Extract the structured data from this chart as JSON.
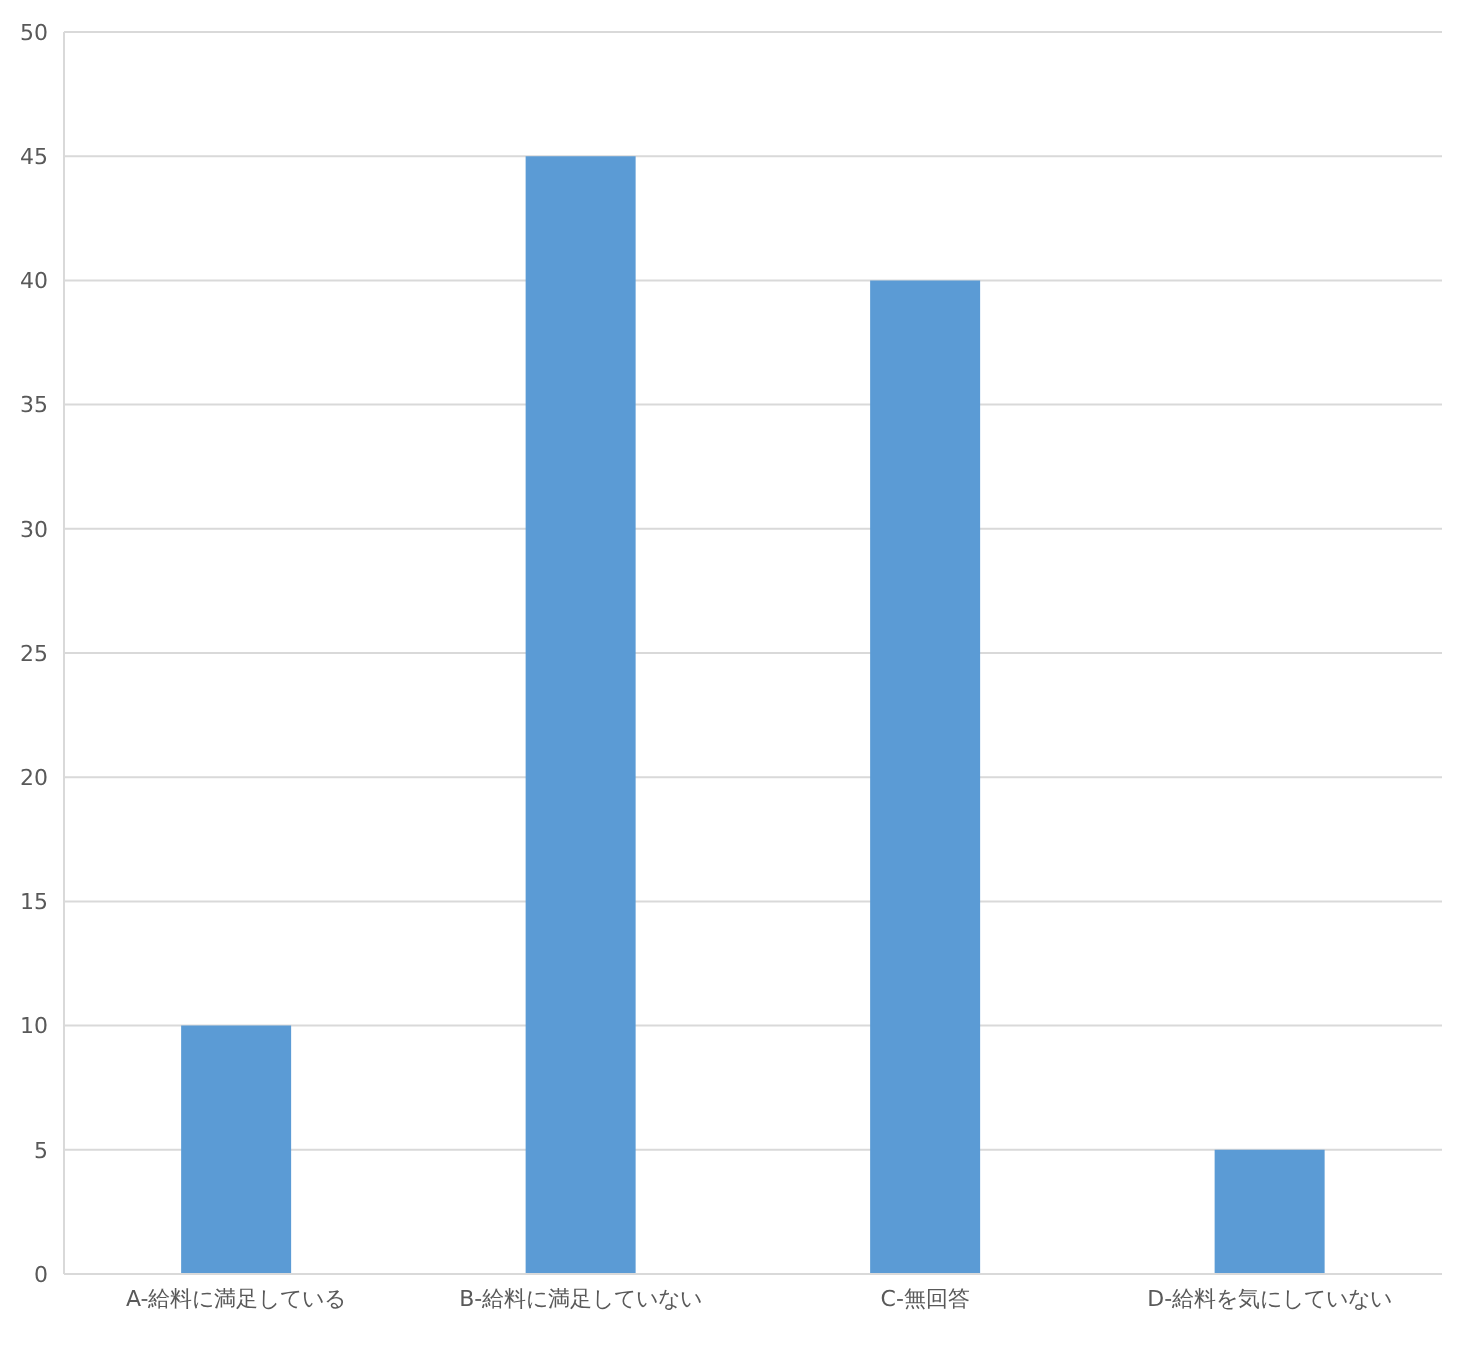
{
  "chart_data": {
    "type": "bar",
    "categories": [
      "A-給料に満足している",
      "B-給料に満足していない",
      "C-無回答",
      "D-給料を気にしていない"
    ],
    "values": [
      10,
      45,
      40,
      5
    ],
    "color": "#5b9bd5",
    "ylim": [
      0,
      50
    ],
    "yticks": [
      0,
      5,
      10,
      15,
      20,
      25,
      30,
      35,
      40,
      45,
      50
    ],
    "grid": "y",
    "legend": false
  }
}
